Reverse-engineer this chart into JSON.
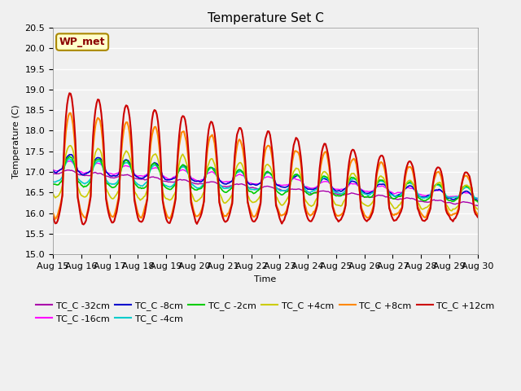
{
  "title": "Temperature Set C",
  "xlabel": "Time",
  "ylabel": "Temperature (C)",
  "ylim": [
    15.0,
    20.5
  ],
  "yticks": [
    15.0,
    15.5,
    16.0,
    16.5,
    17.0,
    17.5,
    18.0,
    18.5,
    19.0,
    19.5,
    20.0,
    20.5
  ],
  "xtick_labels": [
    "Aug 15",
    "Aug 16",
    "Aug 17",
    "Aug 18",
    "Aug 19",
    "Aug 20",
    "Aug 21",
    "Aug 22",
    "Aug 23",
    "Aug 24",
    "Aug 25",
    "Aug 26",
    "Aug 27",
    "Aug 28",
    "Aug 29",
    "Aug 30"
  ],
  "background_color": "#f0f0f0",
  "plot_bg_color": "#f0f0f0",
  "series": [
    {
      "label": "TC_C -32cm",
      "color": "#aa00aa"
    },
    {
      "label": "TC_C -16cm",
      "color": "#ff00ff"
    },
    {
      "label": "TC_C -8cm",
      "color": "#0000cc"
    },
    {
      "label": "TC_C -4cm",
      "color": "#00cccc"
    },
    {
      "label": "TC_C -2cm",
      "color": "#00cc00"
    },
    {
      "label": "TC_C +4cm",
      "color": "#cccc00"
    },
    {
      "label": "TC_C +8cm",
      "color": "#ff8800"
    },
    {
      "label": "TC_C +12cm",
      "color": "#cc0000"
    }
  ],
  "annotation_text": "WP_met",
  "annotation_color": "#8b0000",
  "annotation_bg": "#ffffcc",
  "annotation_edge": "#aa8800",
  "grid_color": "#ffffff",
  "title_fontsize": 11,
  "axis_fontsize": 8,
  "legend_fontsize": 8
}
